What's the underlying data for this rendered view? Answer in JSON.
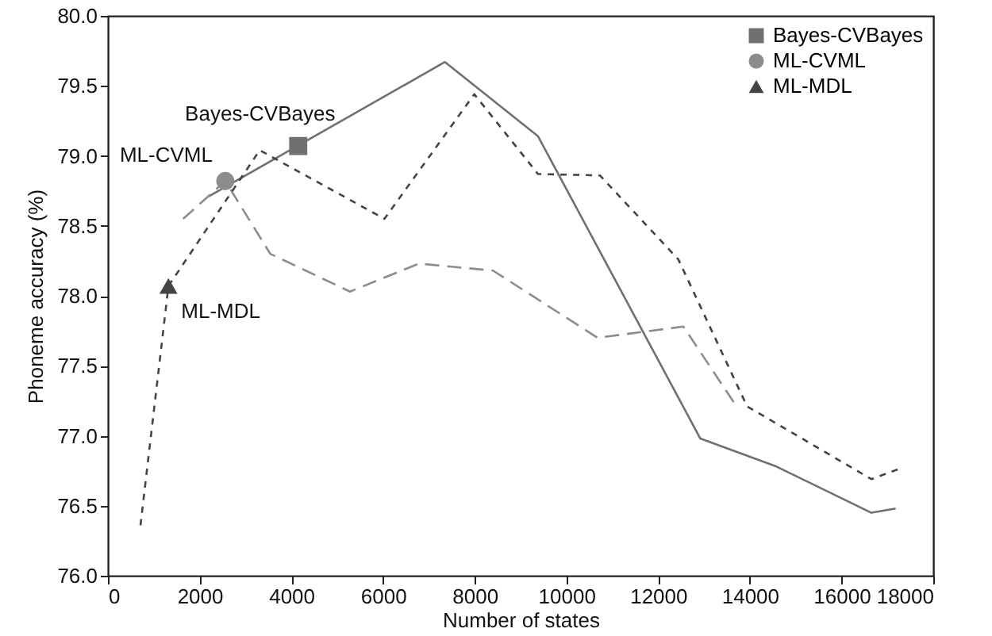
{
  "chart_data": {
    "type": "line",
    "xlabel": "Number of states",
    "ylabel": "Phoneme accuracy (%)",
    "xlim": [
      0,
      18000
    ],
    "xticks": [
      0,
      2000,
      4000,
      6000,
      8000,
      10000,
      12000,
      14000,
      16000,
      18000
    ],
    "ylim": [
      76,
      80
    ],
    "yticks": [
      {
        "value": 76,
        "label": "76.0"
      },
      {
        "value": 76.5,
        "label": "76.5"
      },
      {
        "value": 77,
        "label": "77.0"
      },
      {
        "value": 77.5,
        "label": "77.5"
      },
      {
        "value": 78,
        "label": "78.0"
      },
      {
        "value": 78.5,
        "label": "78.5"
      },
      {
        "value": 79,
        "label": "79.0"
      },
      {
        "value": 79.5,
        "label": "79.5"
      },
      {
        "value": 80,
        "label": "80.0"
      }
    ],
    "grid": false,
    "legend": "top right",
    "series": [
      {
        "name": "Bayes-CVBayes",
        "color": "#707070",
        "line_style": "solid",
        "x": [
          2200,
          7350,
          9380,
          12920,
          14580,
          16650,
          17180
        ],
        "values": [
          78.71,
          79.67,
          79.14,
          76.98,
          76.78,
          76.45,
          76.48
        ]
      },
      {
        "name": "ML-CVML",
        "color": "#8c8c8c",
        "line_style": "dashed",
        "x": [
          1640,
          2560,
          3540,
          5280,
          6780,
          8400,
          10680,
          12550,
          13710
        ],
        "values": [
          78.55,
          78.82,
          78.3,
          78.03,
          78.23,
          78.18,
          77.7,
          77.78,
          77.21
        ]
      },
      {
        "name": "ML-MDL",
        "color": "#444444",
        "line_style": "dotted",
        "x": [
          710,
          1320,
          3310,
          6030,
          7990,
          9380,
          10730,
          12440,
          13940,
          16650,
          17230
        ],
        "values": [
          76.36,
          78.07,
          79.04,
          78.55,
          79.44,
          78.87,
          78.86,
          78.26,
          77.21,
          76.69,
          76.76
        ]
      }
    ],
    "annotations": [
      {
        "text": "Bayes-CVBayes",
        "x": 4150,
        "y": 79.07
      },
      {
        "text": "ML-CVML",
        "x": 2560,
        "y": 78.82
      },
      {
        "text": "ML-MDL",
        "x": 1320,
        "y": 78.07
      }
    ]
  }
}
